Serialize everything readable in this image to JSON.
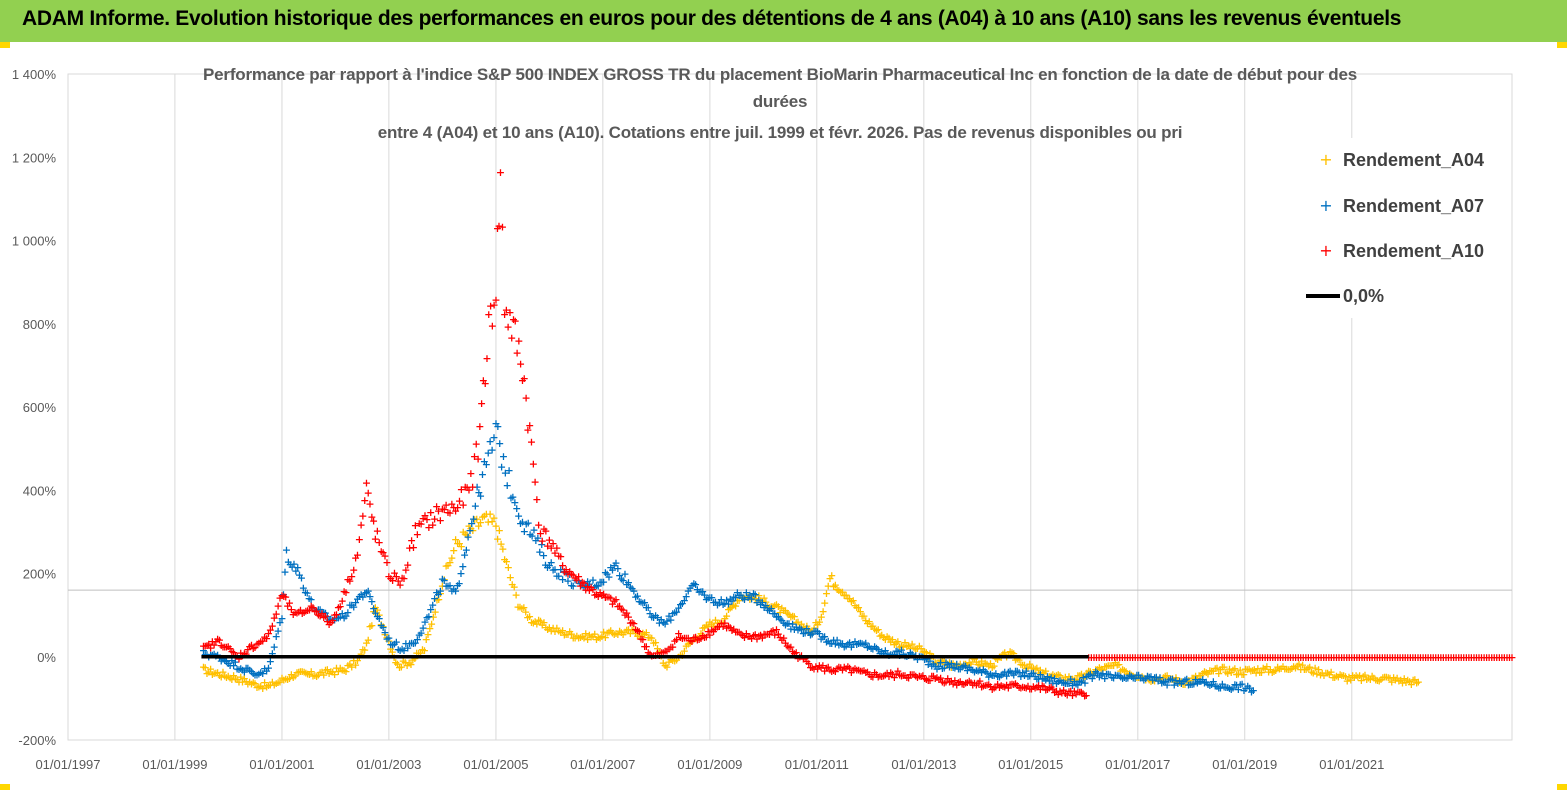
{
  "header": {
    "title": "ADAM Informe. Evolution historique des performances en euros pour des détentions de 4 ans (A04) à 10 ans (A10) sans les revenus éventuels"
  },
  "colors": {
    "banner": "#92d050",
    "a04": "#ffc000",
    "a07": "#0070c0",
    "a10": "#ff0000",
    "zero": "#000000",
    "grid": "#d9d9d9"
  },
  "chart_data": {
    "type": "scatter",
    "title_lines": [
      "Performance par rapport à l'indice S&P 500 INDEX GROSS TR  du placement BioMarin Pharmaceutical Inc en fonction de la date de début pour des",
      "durées",
      "entre 4 (A04) et 10 ans (A10). Cotations entre juil. 1999 et févr. 2026. Pas de revenus disponibles ou pri"
    ],
    "x_type": "date",
    "xlim": [
      "1997-01-01",
      "2023-12-31"
    ],
    "x_ticks": [
      "01/01/1997",
      "01/01/1999",
      "01/01/2001",
      "01/01/2003",
      "01/01/2005",
      "01/01/2007",
      "01/01/2009",
      "01/01/2011",
      "01/01/2013",
      "01/01/2015",
      "01/01/2017",
      "01/01/2019",
      "01/01/2021"
    ],
    "ylim": [
      -200,
      1400
    ],
    "y_ticks": [
      "-200%",
      "0%",
      "200%",
      "400%",
      "600%",
      "800%",
      "1 000%",
      "1 200%",
      "1 400%"
    ],
    "y_tick_values": [
      -200,
      0,
      200,
      400,
      600,
      800,
      1000,
      1200,
      1400
    ],
    "grid": "vertical lines at each x tick; horizontal gridline at about 160%",
    "legend_position": "top-right",
    "legend": [
      {
        "label": "Rendement_A04",
        "marker": "+",
        "color": "#ffc000"
      },
      {
        "label": "Rendement_A07",
        "marker": "+",
        "color": "#0070c0"
      },
      {
        "label": "Rendement_A10",
        "marker": "+",
        "color": "#ff0000"
      },
      {
        "label": "0,0%",
        "marker": "line",
        "color": "#000000"
      }
    ],
    "zero_line": {
      "label": "0,0%",
      "y": 0,
      "x_start": "1999-07-01",
      "x_end": "2016-02-01"
    },
    "series": [
      {
        "name": "Rendement_A04",
        "color": "#ffc000",
        "x": [
          "1999-07-15",
          "1999-11-01",
          "2000-03-01",
          "2000-07-01",
          "2000-10-01",
          "2001-01-01",
          "2001-04-01",
          "2001-08-01",
          "2001-12-01",
          "2002-03-01",
          "2002-06-01",
          "2002-08-01",
          "2002-10-01",
          "2003-01-01",
          "2003-03-01",
          "2003-06-01",
          "2003-09-01",
          "2004-01-01",
          "2004-04-01",
          "2004-07-01",
          "2004-10-01",
          "2005-01-01",
          "2005-03-01",
          "2005-06-01",
          "2005-09-01",
          "2006-01-01",
          "2006-04-01",
          "2006-08-01",
          "2006-12-01",
          "2007-04-01",
          "2007-08-01",
          "2007-12-01",
          "2008-03-01",
          "2008-06-01",
          "2008-09-01",
          "2009-01-01",
          "2009-04-01",
          "2009-08-01",
          "2009-12-01",
          "2010-04-01",
          "2010-08-01",
          "2010-12-01",
          "2011-02-01",
          "2011-04-01",
          "2011-08-01",
          "2011-12-01",
          "2012-04-01",
          "2012-08-01",
          "2012-12-01",
          "2013-04-01",
          "2013-08-01",
          "2013-12-01",
          "2014-04-01",
          "2014-08-01",
          "2014-12-01",
          "2015-04-01",
          "2015-08-01",
          "2015-12-01",
          "2016-04-01",
          "2016-08-01",
          "2016-12-01",
          "2017-04-01",
          "2017-08-01",
          "2017-12-01",
          "2018-04-01",
          "2018-08-01",
          "2018-12-01",
          "2019-04-01",
          "2019-08-01",
          "2019-12-01",
          "2020-04-01",
          "2020-08-01",
          "2020-12-01",
          "2021-04-01",
          "2021-08-01",
          "2021-12-01",
          "2022-04-01"
        ],
        "values": [
          -30,
          -40,
          -50,
          -65,
          -70,
          -55,
          -40,
          -42,
          -35,
          -30,
          -10,
          30,
          120,
          40,
          -20,
          -10,
          20,
          180,
          270,
          300,
          330,
          320,
          240,
          130,
          90,
          70,
          60,
          50,
          50,
          60,
          60,
          50,
          -20,
          0,
          40,
          80,
          90,
          150,
          140,
          120,
          90,
          60,
          100,
          190,
          150,
          90,
          50,
          30,
          20,
          -10,
          -20,
          -10,
          -20,
          10,
          -20,
          -40,
          -50,
          -50,
          -30,
          -20,
          -40,
          -50,
          -50,
          -60,
          -40,
          -30,
          -35,
          -30,
          -30,
          -20,
          -30,
          -40,
          -50,
          -50,
          -50,
          -55,
          -60
        ]
      },
      {
        "name": "Rendement_A07",
        "color": "#0070c0",
        "x": [
          "1999-07-15",
          "1999-11-01",
          "2000-03-01",
          "2000-07-01",
          "2000-10-01",
          "2001-01-01",
          "2001-02-01",
          "2001-05-01",
          "2001-08-01",
          "2001-12-01",
          "2002-03-01",
          "2002-06-01",
          "2002-08-01",
          "2002-10-01",
          "2003-01-01",
          "2003-04-01",
          "2003-07-01",
          "2003-10-01",
          "2004-01-01",
          "2004-04-01",
          "2004-08-01",
          "2004-10-01",
          "2005-01-01",
          "2005-04-01",
          "2005-07-01",
          "2005-10-01",
          "2006-01-01",
          "2006-04-01",
          "2006-08-01",
          "2006-12-01",
          "2007-04-01",
          "2007-08-01",
          "2007-12-01",
          "2008-03-01",
          "2008-06-01",
          "2008-09-01",
          "2009-01-01",
          "2009-04-01",
          "2009-08-01",
          "2009-12-01",
          "2010-04-01",
          "2010-08-01",
          "2010-12-01",
          "2011-04-01",
          "2011-08-01",
          "2011-12-01",
          "2012-04-01",
          "2012-08-01",
          "2012-12-01",
          "2013-04-01",
          "2013-08-01",
          "2013-12-01",
          "2014-04-01",
          "2014-08-01",
          "2014-12-01",
          "2015-04-01",
          "2015-08-01",
          "2015-12-01",
          "2016-04-01",
          "2016-08-01",
          "2016-12-01",
          "2017-04-01",
          "2017-08-01",
          "2017-12-01",
          "2018-04-01",
          "2018-08-01",
          "2018-12-01",
          "2019-03-01"
        ],
        "values": [
          10,
          0,
          -20,
          -40,
          -30,
          100,
          250,
          200,
          120,
          90,
          100,
          140,
          160,
          110,
          40,
          20,
          40,
          100,
          180,
          150,
          350,
          430,
          540,
          420,
          330,
          280,
          220,
          200,
          170,
          180,
          220,
          160,
          100,
          80,
          120,
          170,
          140,
          130,
          150,
          140,
          100,
          70,
          60,
          40,
          30,
          30,
          10,
          10,
          0,
          -20,
          -20,
          -30,
          -40,
          -40,
          -40,
          -50,
          -60,
          -60,
          -40,
          -50,
          -50,
          -50,
          -60,
          -60,
          -60,
          -70,
          -70,
          -80
        ]
      },
      {
        "name": "Rendement_A10",
        "color": "#ff0000",
        "x": [
          "1999-07-15",
          "1999-11-01",
          "2000-03-01",
          "2000-07-01",
          "2000-10-01",
          "2001-01-01",
          "2001-04-01",
          "2001-08-01",
          "2001-12-01",
          "2002-03-01",
          "2002-06-01",
          "2002-08-01",
          "2002-10-01",
          "2003-01-01",
          "2003-04-01",
          "2003-07-01",
          "2003-10-01",
          "2004-01-01",
          "2004-04-01",
          "2004-07-01",
          "2004-09-01",
          "2004-11-01",
          "2005-01-01",
          "2005-02-01",
          "2005-03-01",
          "2005-05-01",
          "2005-07-01",
          "2005-09-01",
          "2005-11-01",
          "2006-01-01",
          "2006-04-01",
          "2006-08-01",
          "2006-12-01",
          "2007-04-01",
          "2007-08-01",
          "2007-12-01",
          "2008-03-01",
          "2008-06-01",
          "2008-09-01",
          "2009-01-01",
          "2009-04-01",
          "2009-08-01",
          "2009-12-01",
          "2010-04-01",
          "2010-08-01",
          "2010-12-01",
          "2011-04-01",
          "2011-08-01",
          "2011-12-01",
          "2012-04-01",
          "2012-08-01",
          "2012-12-01",
          "2013-04-01",
          "2013-08-01",
          "2013-12-01",
          "2014-04-01",
          "2014-08-01",
          "2014-12-01",
          "2015-04-01",
          "2015-08-01",
          "2015-12-01",
          "2016-01-15",
          "2016-02-01",
          "2017-01-01",
          "2018-01-01",
          "2019-01-01",
          "2020-01-01",
          "2021-01-01",
          "2022-01-01",
          "2023-01-01",
          "2023-12-31"
        ],
        "values": [
          20,
          40,
          0,
          30,
          50,
          150,
          100,
          120,
          80,
          150,
          250,
          400,
          300,
          200,
          180,
          300,
          330,
          350,
          360,
          400,
          500,
          750,
          900,
          1150,
          850,
          780,
          700,
          500,
          300,
          280,
          220,
          180,
          150,
          130,
          80,
          0,
          10,
          50,
          40,
          60,
          80,
          50,
          50,
          60,
          10,
          -20,
          -30,
          -30,
          -40,
          -45,
          -40,
          -50,
          -50,
          -60,
          -60,
          -70,
          -70,
          -70,
          -75,
          -85,
          -90,
          -85,
          0,
          0,
          0,
          0,
          0,
          0,
          0,
          0,
          0
        ]
      }
    ]
  }
}
